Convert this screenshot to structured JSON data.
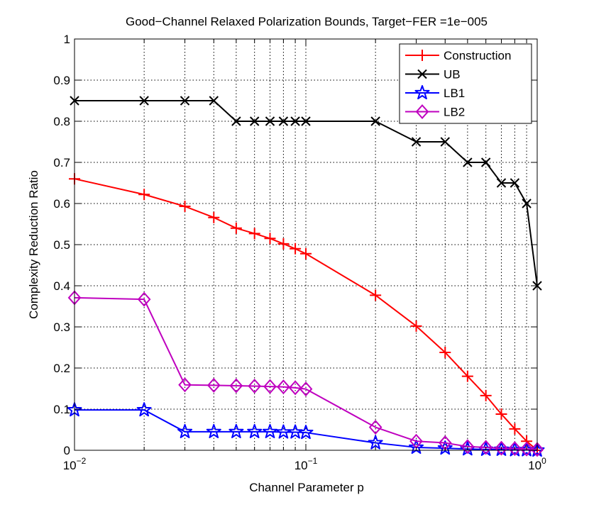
{
  "chart_data": {
    "type": "line",
    "title": "Good−Channel Relaxed Polarization Bounds, Target−FER =1e−005",
    "xlabel": "Channel Parameter p",
    "ylabel": "Complexity Reduction Ratio",
    "xscale": "log",
    "xlim": [
      0.01,
      1
    ],
    "ylim": [
      0,
      1
    ],
    "grid": true,
    "legend_position": "top-right",
    "x_ticks": [
      {
        "base": "10",
        "exp": "−2",
        "value": 0.01
      },
      {
        "base": "10",
        "exp": "−1",
        "value": 0.1
      },
      {
        "base": "10",
        "exp": "0",
        "value": 1
      }
    ],
    "y_ticks": [
      "0",
      "0.1",
      "0.2",
      "0.3",
      "0.4",
      "0.5",
      "0.6",
      "0.7",
      "0.8",
      "0.9",
      "1"
    ],
    "y_tick_values": [
      0,
      0.1,
      0.2,
      0.3,
      0.4,
      0.5,
      0.6,
      0.7,
      0.8,
      0.9,
      1
    ],
    "x": [
      0.01,
      0.02,
      0.03,
      0.04,
      0.05,
      0.06,
      0.07,
      0.08,
      0.09,
      0.1,
      0.2,
      0.3,
      0.4,
      0.5,
      0.6,
      0.7,
      0.8,
      0.9,
      1.0
    ],
    "series": [
      {
        "name": "Construction",
        "color": "#ff0000",
        "marker": "plus",
        "values": [
          0.66,
          0.622,
          0.593,
          0.566,
          0.54,
          0.527,
          0.515,
          0.502,
          0.49,
          0.478,
          0.377,
          0.302,
          0.238,
          0.18,
          0.133,
          0.088,
          0.052,
          0.022,
          0.0
        ]
      },
      {
        "name": "UB",
        "color": "#000000",
        "marker": "x",
        "values": [
          0.85,
          0.85,
          0.85,
          0.85,
          0.8,
          0.8,
          0.8,
          0.8,
          0.8,
          0.8,
          0.8,
          0.75,
          0.75,
          0.7,
          0.7,
          0.65,
          0.65,
          0.6,
          0.4
        ]
      },
      {
        "name": "LB1",
        "color": "#0000ff",
        "marker": "star",
        "values": [
          0.098,
          0.098,
          0.045,
          0.045,
          0.045,
          0.045,
          0.045,
          0.044,
          0.044,
          0.043,
          0.018,
          0.007,
          0.005,
          0.003,
          0.002,
          0.002,
          0.001,
          0.001,
          0.0
        ]
      },
      {
        "name": "LB2",
        "color": "#bf00bf",
        "marker": "diamond",
        "values": [
          0.371,
          0.367,
          0.159,
          0.158,
          0.157,
          0.156,
          0.155,
          0.154,
          0.152,
          0.149,
          0.056,
          0.022,
          0.018,
          0.009,
          0.007,
          0.005,
          0.004,
          0.003,
          0.002
        ]
      }
    ]
  }
}
